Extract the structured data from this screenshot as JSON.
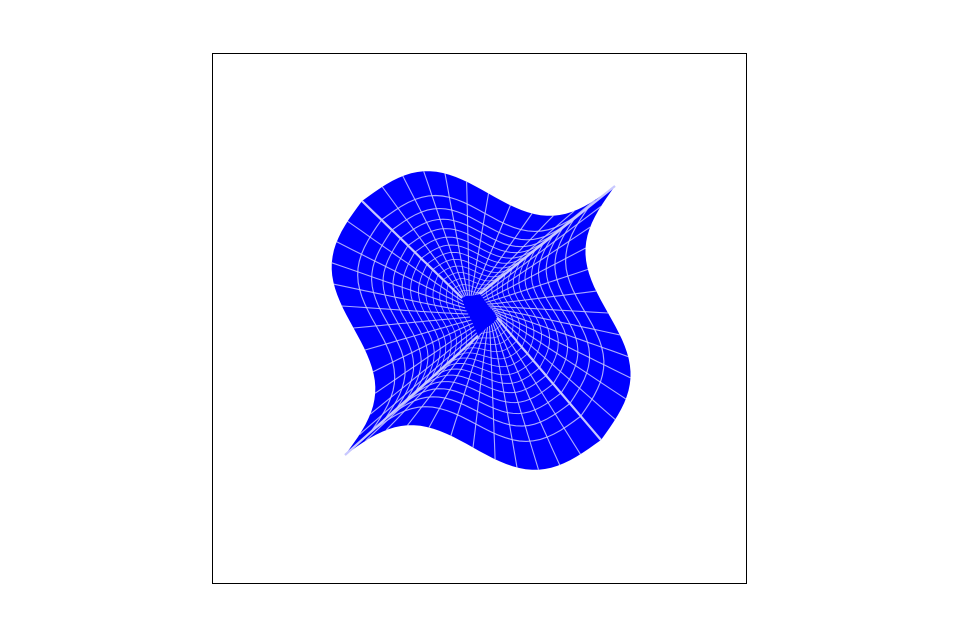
{
  "figure": {
    "subject": "warped-mesh",
    "fill_color": "#0000ff",
    "line_color": "#c8c8ff",
    "background_color": "#ffffff",
    "frame_color": "#000000",
    "axes_visible": false,
    "mesh": {
      "quadrants": 4,
      "rings": 13,
      "columns": 12
    }
  }
}
